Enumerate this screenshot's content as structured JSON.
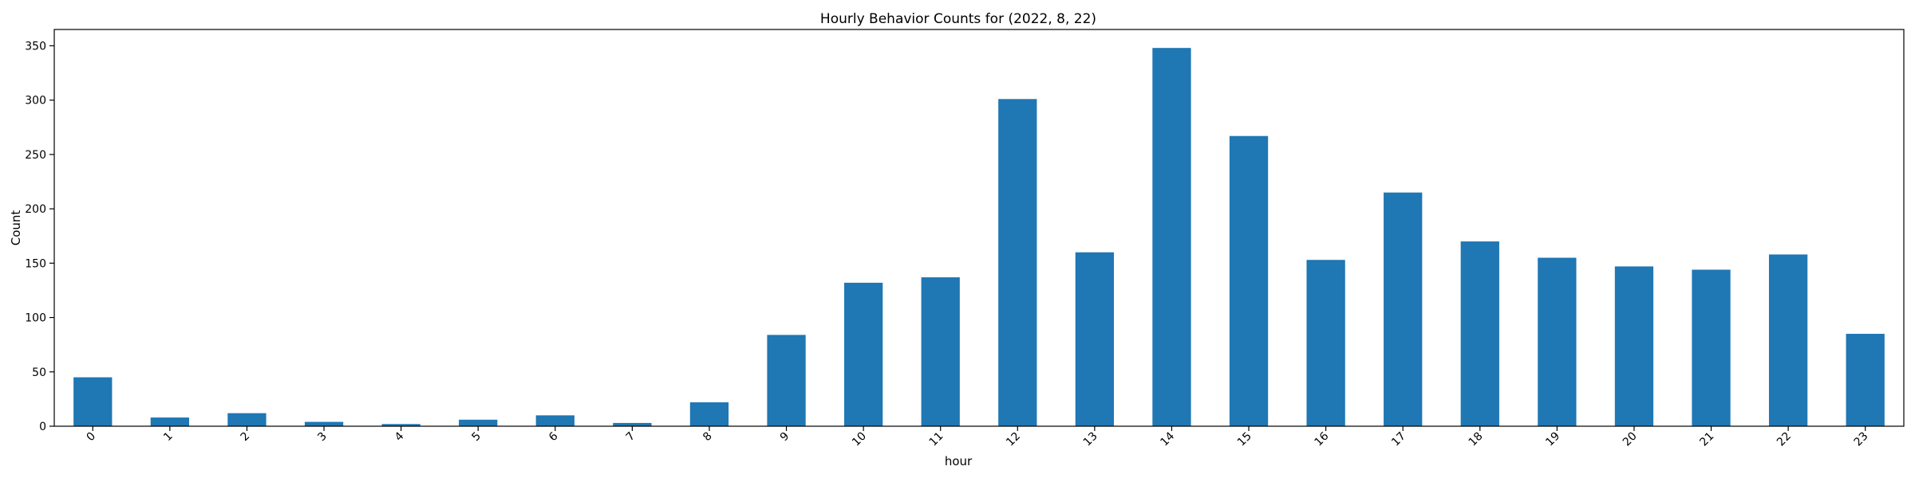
{
  "chart_data": {
    "type": "bar",
    "title": "Hourly Behavior Counts for (2022, 8, 22)",
    "xlabel": "hour",
    "ylabel": "Count",
    "categories": [
      "0",
      "1",
      "2",
      "3",
      "4",
      "5",
      "6",
      "7",
      "8",
      "9",
      "10",
      "11",
      "12",
      "13",
      "14",
      "15",
      "16",
      "17",
      "18",
      "19",
      "20",
      "21",
      "22",
      "23"
    ],
    "values": [
      45,
      8,
      12,
      4,
      2,
      6,
      10,
      3,
      22,
      84,
      132,
      137,
      301,
      160,
      348,
      267,
      153,
      215,
      170,
      155,
      147,
      144,
      158,
      85
    ],
    "ylim": [
      0,
      365
    ],
    "yticks": [
      0,
      50,
      100,
      150,
      200,
      250,
      300,
      350
    ],
    "grid": false,
    "legend": "none",
    "bar_color": "#1f77b4"
  }
}
